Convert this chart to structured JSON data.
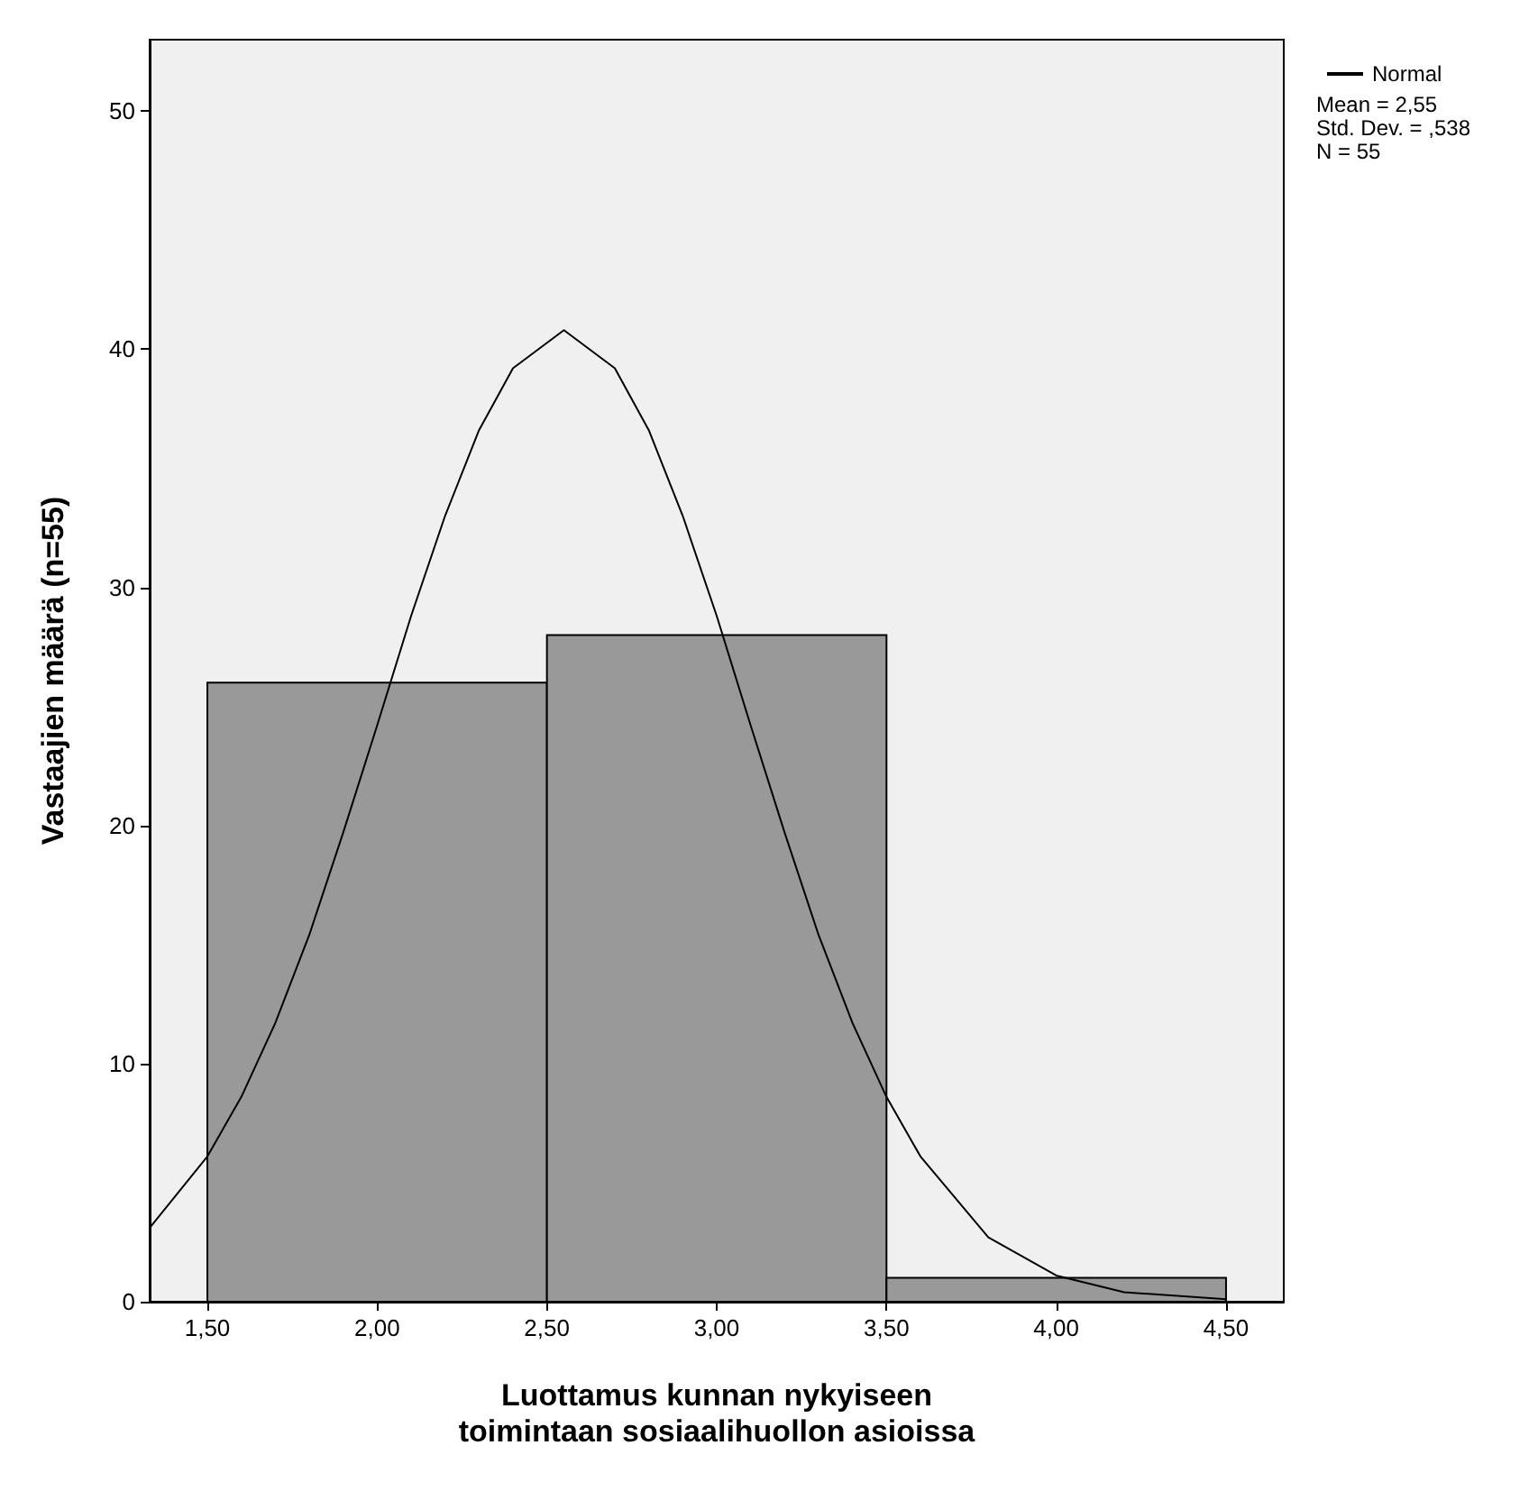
{
  "chart_data": {
    "type": "histogram",
    "bins": [
      1.5,
      2.5,
      3.5,
      4.5
    ],
    "values": [
      26,
      28,
      1
    ],
    "color": "#999999",
    "series": [
      {
        "type": "line",
        "name": "Normal",
        "color": "#000000",
        "x": [
          1.33,
          1.5,
          1.6,
          1.7,
          1.8,
          1.9,
          2.0,
          2.1,
          2.2,
          2.3,
          2.4,
          2.55,
          2.7,
          2.8,
          2.9,
          3.0,
          3.1,
          3.2,
          3.3,
          3.4,
          3.5,
          3.6,
          3.8,
          4.0,
          4.2,
          4.5
        ],
        "values": [
          3.1,
          6.1,
          8.6,
          11.7,
          15.4,
          19.7,
          24.2,
          28.8,
          33.0,
          36.6,
          39.2,
          40.8,
          39.2,
          36.6,
          33.0,
          28.8,
          24.2,
          19.7,
          15.4,
          11.7,
          8.6,
          6.1,
          2.7,
          1.1,
          0.4,
          0.1
        ]
      }
    ],
    "xlim": [
      1.33,
      4.67
    ],
    "ylim": [
      0,
      53
    ],
    "xticks": [
      {
        "value": 1.5,
        "label": "1,50"
      },
      {
        "value": 2.0,
        "label": "2,00"
      },
      {
        "value": 2.5,
        "label": "2,50"
      },
      {
        "value": 3.0,
        "label": "3,00"
      },
      {
        "value": 3.5,
        "label": "3,50"
      },
      {
        "value": 4.0,
        "label": "4,00"
      },
      {
        "value": 4.5,
        "label": "4,50"
      }
    ],
    "yticks": [
      0,
      10,
      20,
      30,
      40,
      50
    ],
    "xlabel": "Luottamus kunnan nykyiseen toimintaan sosiaalihuollon asioissa",
    "ylabel": "Vastaajien määrä (n=55)",
    "annotations": [
      "Mean = 2,55",
      "Std. Dev. = ,538",
      "N = 55"
    ],
    "legend": "top right",
    "grid": false
  }
}
